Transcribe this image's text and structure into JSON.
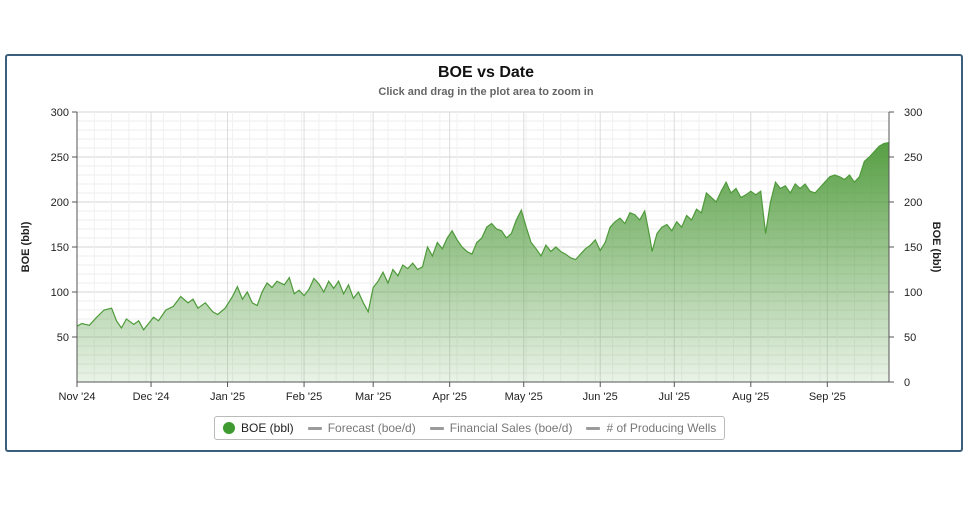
{
  "chart_data": {
    "type": "area",
    "title": "BOE vs Date",
    "subtitle": "Click and drag in the plot area to zoom in",
    "ylabel": "BOE (bbl)",
    "ylabel_right": "BOE (bbl)",
    "ylim": [
      0,
      300
    ],
    "yticks_left": [
      "50",
      "100",
      "150",
      "200",
      "250",
      "300"
    ],
    "yticks_right": [
      "0",
      "50",
      "100",
      "150",
      "200",
      "250",
      "300"
    ],
    "yticks_values": [
      0,
      50,
      100,
      150,
      200,
      250,
      300
    ],
    "xticks": [
      {
        "label": "Nov '24",
        "date": "2024-11-01"
      },
      {
        "label": "Dec '24",
        "date": "2024-12-01"
      },
      {
        "label": "Jan '25",
        "date": "2025-01-01"
      },
      {
        "label": "Feb '25",
        "date": "2025-02-01"
      },
      {
        "label": "Mar '25",
        "date": "2025-03-01"
      },
      {
        "label": "Apr '25",
        "date": "2025-04-01"
      },
      {
        "label": "May '25",
        "date": "2025-05-01"
      },
      {
        "label": "Jun '25",
        "date": "2025-06-01"
      },
      {
        "label": "Jul '25",
        "date": "2025-07-01"
      },
      {
        "label": "Aug '25",
        "date": "2025-08-01"
      },
      {
        "label": "Sep '25",
        "date": "2025-09-01"
      }
    ],
    "xlim": [
      "2024-11-01",
      "2025-09-26"
    ],
    "grid": true,
    "legend_position": "bottom-center",
    "series": [
      {
        "name": "BOE (bbl)",
        "color": "#4e9a3a",
        "points": [
          [
            "2024-11-01",
            62
          ],
          [
            "2024-11-03",
            65
          ],
          [
            "2024-11-06",
            63
          ],
          [
            "2024-11-09",
            72
          ],
          [
            "2024-11-12",
            80
          ],
          [
            "2024-11-15",
            82
          ],
          [
            "2024-11-17",
            68
          ],
          [
            "2024-11-19",
            60
          ],
          [
            "2024-11-21",
            70
          ],
          [
            "2024-11-24",
            64
          ],
          [
            "2024-11-26",
            68
          ],
          [
            "2024-11-28",
            58
          ],
          [
            "2024-11-30",
            65
          ],
          [
            "2024-12-02",
            72
          ],
          [
            "2024-12-04",
            68
          ],
          [
            "2024-12-07",
            80
          ],
          [
            "2024-12-10",
            84
          ],
          [
            "2024-12-13",
            95
          ],
          [
            "2024-12-16",
            88
          ],
          [
            "2024-12-18",
            92
          ],
          [
            "2024-12-20",
            82
          ],
          [
            "2024-12-23",
            88
          ],
          [
            "2024-12-26",
            78
          ],
          [
            "2024-12-28",
            75
          ],
          [
            "2024-12-31",
            82
          ],
          [
            "2025-01-03",
            95
          ],
          [
            "2025-01-05",
            106
          ],
          [
            "2025-01-07",
            92
          ],
          [
            "2025-01-09",
            100
          ],
          [
            "2025-01-11",
            88
          ],
          [
            "2025-01-13",
            85
          ],
          [
            "2025-01-15",
            100
          ],
          [
            "2025-01-17",
            110
          ],
          [
            "2025-01-19",
            105
          ],
          [
            "2025-01-21",
            112
          ],
          [
            "2025-01-24",
            108
          ],
          [
            "2025-01-26",
            116
          ],
          [
            "2025-01-28",
            98
          ],
          [
            "2025-01-30",
            102
          ],
          [
            "2025-02-01",
            96
          ],
          [
            "2025-02-03",
            103
          ],
          [
            "2025-02-05",
            115
          ],
          [
            "2025-02-07",
            109
          ],
          [
            "2025-02-09",
            100
          ],
          [
            "2025-02-11",
            112
          ],
          [
            "2025-02-13",
            104
          ],
          [
            "2025-02-15",
            112
          ],
          [
            "2025-02-17",
            98
          ],
          [
            "2025-02-19",
            108
          ],
          [
            "2025-02-21",
            93
          ],
          [
            "2025-02-23",
            100
          ],
          [
            "2025-02-25",
            88
          ],
          [
            "2025-02-27",
            78
          ],
          [
            "2025-03-01",
            105
          ],
          [
            "2025-03-03",
            112
          ],
          [
            "2025-03-05",
            122
          ],
          [
            "2025-03-07",
            110
          ],
          [
            "2025-03-09",
            125
          ],
          [
            "2025-03-11",
            118
          ],
          [
            "2025-03-13",
            130
          ],
          [
            "2025-03-15",
            126
          ],
          [
            "2025-03-17",
            132
          ],
          [
            "2025-03-19",
            125
          ],
          [
            "2025-03-21",
            128
          ],
          [
            "2025-03-23",
            150
          ],
          [
            "2025-03-25",
            140
          ],
          [
            "2025-03-27",
            155
          ],
          [
            "2025-03-29",
            148
          ],
          [
            "2025-03-31",
            160
          ],
          [
            "2025-04-02",
            168
          ],
          [
            "2025-04-04",
            158
          ],
          [
            "2025-04-06",
            150
          ],
          [
            "2025-04-08",
            145
          ],
          [
            "2025-04-10",
            142
          ],
          [
            "2025-04-12",
            155
          ],
          [
            "2025-04-14",
            160
          ],
          [
            "2025-04-16",
            172
          ],
          [
            "2025-04-18",
            176
          ],
          [
            "2025-04-20",
            170
          ],
          [
            "2025-04-22",
            168
          ],
          [
            "2025-04-24",
            160
          ],
          [
            "2025-04-26",
            165
          ],
          [
            "2025-04-28",
            180
          ],
          [
            "2025-04-30",
            191
          ],
          [
            "2025-05-02",
            172
          ],
          [
            "2025-05-04",
            155
          ],
          [
            "2025-05-06",
            148
          ],
          [
            "2025-05-08",
            140
          ],
          [
            "2025-05-10",
            152
          ],
          [
            "2025-05-12",
            145
          ],
          [
            "2025-05-14",
            150
          ],
          [
            "2025-05-16",
            145
          ],
          [
            "2025-05-18",
            142
          ],
          [
            "2025-05-20",
            138
          ],
          [
            "2025-05-22",
            136
          ],
          [
            "2025-05-24",
            142
          ],
          [
            "2025-05-26",
            148
          ],
          [
            "2025-05-28",
            152
          ],
          [
            "2025-05-30",
            158
          ],
          [
            "2025-06-01",
            146
          ],
          [
            "2025-06-03",
            155
          ],
          [
            "2025-06-05",
            172
          ],
          [
            "2025-06-07",
            178
          ],
          [
            "2025-06-09",
            182
          ],
          [
            "2025-06-11",
            176
          ],
          [
            "2025-06-13",
            188
          ],
          [
            "2025-06-15",
            186
          ],
          [
            "2025-06-17",
            180
          ],
          [
            "2025-06-19",
            190
          ],
          [
            "2025-06-21",
            162
          ],
          [
            "2025-06-22",
            145
          ],
          [
            "2025-06-24",
            165
          ],
          [
            "2025-06-26",
            172
          ],
          [
            "2025-06-28",
            175
          ],
          [
            "2025-06-30",
            168
          ],
          [
            "2025-07-02",
            178
          ],
          [
            "2025-07-04",
            172
          ],
          [
            "2025-07-06",
            185
          ],
          [
            "2025-07-08",
            180
          ],
          [
            "2025-07-10",
            192
          ],
          [
            "2025-07-12",
            188
          ],
          [
            "2025-07-14",
            210
          ],
          [
            "2025-07-16",
            205
          ],
          [
            "2025-07-18",
            200
          ],
          [
            "2025-07-20",
            212
          ],
          [
            "2025-07-22",
            222
          ],
          [
            "2025-07-24",
            210
          ],
          [
            "2025-07-26",
            215
          ],
          [
            "2025-07-28",
            205
          ],
          [
            "2025-07-30",
            208
          ],
          [
            "2025-08-01",
            212
          ],
          [
            "2025-08-03",
            208
          ],
          [
            "2025-08-05",
            212
          ],
          [
            "2025-08-07",
            165
          ],
          [
            "2025-08-09",
            200
          ],
          [
            "2025-08-11",
            222
          ],
          [
            "2025-08-13",
            215
          ],
          [
            "2025-08-15",
            218
          ],
          [
            "2025-08-17",
            210
          ],
          [
            "2025-08-19",
            220
          ],
          [
            "2025-08-21",
            215
          ],
          [
            "2025-08-23",
            220
          ],
          [
            "2025-08-25",
            212
          ],
          [
            "2025-08-27",
            210
          ],
          [
            "2025-08-29",
            216
          ],
          [
            "2025-08-31",
            222
          ],
          [
            "2025-09-02",
            228
          ],
          [
            "2025-09-04",
            230
          ],
          [
            "2025-09-06",
            228
          ],
          [
            "2025-09-08",
            225
          ],
          [
            "2025-09-10",
            230
          ],
          [
            "2025-09-12",
            222
          ],
          [
            "2025-09-14",
            228
          ],
          [
            "2025-09-16",
            245
          ],
          [
            "2025-09-18",
            250
          ],
          [
            "2025-09-20",
            256
          ],
          [
            "2025-09-22",
            262
          ],
          [
            "2025-09-24",
            265
          ],
          [
            "2025-09-26",
            266
          ]
        ]
      }
    ]
  },
  "legend": {
    "items": [
      {
        "label": "BOE (bbl)",
        "color": "#3f9a32",
        "active": true,
        "symbol": "dot"
      },
      {
        "label": "Forecast (boe/d)",
        "color": "#9b9b9b",
        "active": false,
        "symbol": "line"
      },
      {
        "label": "Financial Sales (boe/d)",
        "color": "#9b9b9b",
        "active": false,
        "symbol": "line"
      },
      {
        "label": "# of Producing Wells",
        "color": "#9b9b9b",
        "active": false,
        "symbol": "line"
      }
    ]
  }
}
